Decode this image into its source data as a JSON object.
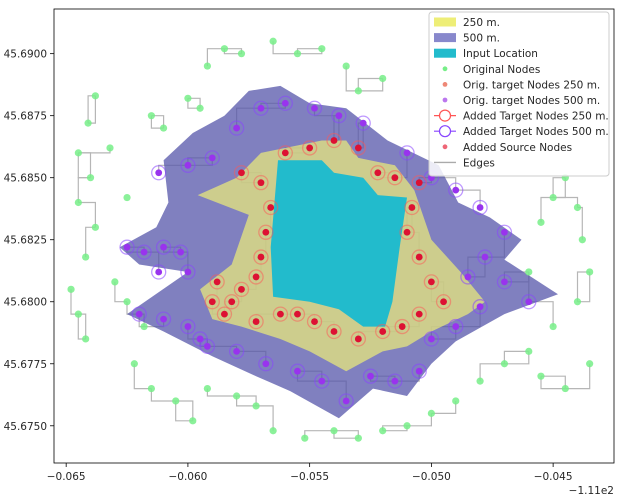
{
  "chart_data": {
    "type": "scatter",
    "title": "",
    "xlabel": "",
    "ylabel": "",
    "x_offset_label": "−1.11e2",
    "xlim": [
      -0.0655,
      -0.0425
    ],
    "ylim": [
      45.6735,
      45.6918
    ],
    "grid": false,
    "legend_position": "top-right",
    "xticks": [
      -0.065,
      -0.06,
      -0.055,
      -0.05,
      -0.045
    ],
    "xtick_labels": [
      "−0.065",
      "−0.060",
      "−0.055",
      "−0.050",
      "−0.045"
    ],
    "yticks": [
      45.675,
      45.6775,
      45.68,
      45.6825,
      45.685,
      45.6875,
      45.69
    ],
    "ytick_labels": [
      "45.6750",
      "45.6775",
      "45.6800",
      "45.6825",
      "45.6850",
      "45.6875",
      "45.6900"
    ],
    "colors": {
      "area250": "#eeee77",
      "area500": "#5555aa",
      "input": "#22bbcc",
      "original": "#77ee88",
      "target250": "#ee8877",
      "target500": "#9933ee",
      "added250": "#ff5555",
      "added500": "#8844ff",
      "source": "#dd1133",
      "edges": "#aaaaaa"
    },
    "regions": [
      {
        "name": "500 m.",
        "polygon": [
          [
            -0.0628,
            45.6822
          ],
          [
            -0.0613,
            45.683
          ],
          [
            -0.0608,
            45.684
          ],
          [
            -0.061,
            45.6857
          ],
          [
            -0.0598,
            45.6868
          ],
          [
            -0.0585,
            45.6875
          ],
          [
            -0.0575,
            45.6885
          ],
          [
            -0.0562,
            45.6887
          ],
          [
            -0.055,
            45.688
          ],
          [
            -0.0535,
            45.6878
          ],
          [
            -0.0518,
            45.6865
          ],
          [
            -0.0497,
            45.6855
          ],
          [
            -0.0489,
            45.684
          ],
          [
            -0.0476,
            45.6834
          ],
          [
            -0.0463,
            45.6825
          ],
          [
            -0.047,
            45.6817
          ],
          [
            -0.0448,
            45.6803
          ],
          [
            -0.047,
            45.6795
          ],
          [
            -0.049,
            45.6784
          ],
          [
            -0.05,
            45.6775
          ],
          [
            -0.051,
            45.6762
          ],
          [
            -0.0524,
            45.6765
          ],
          [
            -0.0538,
            45.6753
          ],
          [
            -0.0558,
            45.6764
          ],
          [
            -0.0572,
            45.677
          ],
          [
            -0.059,
            45.6778
          ],
          [
            -0.061,
            45.6788
          ],
          [
            -0.0625,
            45.6795
          ],
          [
            -0.06,
            45.6812
          ],
          [
            -0.062,
            45.6815
          ]
        ]
      },
      {
        "name": "250 m.",
        "polygon": [
          [
            -0.0596,
            45.6843
          ],
          [
            -0.058,
            45.685
          ],
          [
            -0.057,
            45.686
          ],
          [
            -0.0545,
            45.6865
          ],
          [
            -0.0535,
            45.6865
          ],
          [
            -0.053,
            45.6858
          ],
          [
            -0.0515,
            45.6855
          ],
          [
            -0.0507,
            45.6845
          ],
          [
            -0.05,
            45.6825
          ],
          [
            -0.0488,
            45.6812
          ],
          [
            -0.0478,
            45.68
          ],
          [
            -0.0485,
            45.6795
          ],
          [
            -0.05,
            45.6788
          ],
          [
            -0.051,
            45.6782
          ],
          [
            -0.052,
            45.678
          ],
          [
            -0.0535,
            45.6772
          ],
          [
            -0.055,
            45.678
          ],
          [
            -0.0562,
            45.6785
          ],
          [
            -0.0578,
            45.679
          ],
          [
            -0.059,
            45.6793
          ],
          [
            -0.0595,
            45.6805
          ],
          [
            -0.0582,
            45.6815
          ],
          [
            -0.0575,
            45.6835
          ]
        ]
      },
      {
        "name": "Input Location",
        "polygon": [
          [
            -0.0563,
            45.6857
          ],
          [
            -0.0545,
            45.6857
          ],
          [
            -0.054,
            45.6852
          ],
          [
            -0.0528,
            45.685
          ],
          [
            -0.0522,
            45.6843
          ],
          [
            -0.051,
            45.6842
          ],
          [
            -0.0513,
            45.6822
          ],
          [
            -0.0516,
            45.68
          ],
          [
            -0.0519,
            45.679
          ],
          [
            -0.0528,
            45.679
          ],
          [
            -0.0538,
            45.6797
          ],
          [
            -0.055,
            45.68
          ],
          [
            -0.0565,
            45.6802
          ],
          [
            -0.0566,
            45.6822
          ]
        ]
      }
    ],
    "legend": [
      {
        "label": "250 m.",
        "kind": "patch",
        "color": "#eeee77"
      },
      {
        "label": "500 m.",
        "kind": "patch",
        "color": "#8888cc"
      },
      {
        "label": "Input Location",
        "kind": "patch",
        "color": "#22bbcc"
      },
      {
        "label": "Original Nodes",
        "kind": "dot",
        "color": "#77ee88"
      },
      {
        "label": "Orig. target Nodes 250 m.",
        "kind": "dot",
        "color": "#ee8877"
      },
      {
        "label": "Orig. target Nodes 500 m.",
        "kind": "dot",
        "color": "#bb77ee"
      },
      {
        "label": "Added Target Nodes 250 m.",
        "kind": "ring",
        "color": "#ff5555"
      },
      {
        "label": "Added Target Nodes 500 m.",
        "kind": "ring",
        "color": "#8844ff"
      },
      {
        "label": "Added Source Nodes",
        "kind": "dot",
        "color": "#ee6677"
      },
      {
        "label": "Edges",
        "kind": "line",
        "color": "#aaaaaa"
      }
    ],
    "series": [
      {
        "name": "Original Nodes",
        "points": [
          [
            -0.0638,
            45.6883
          ],
          [
            -0.0641,
            45.6872
          ],
          [
            -0.0645,
            45.686
          ],
          [
            -0.064,
            45.685
          ],
          [
            -0.0645,
            45.684
          ],
          [
            -0.0638,
            45.683
          ],
          [
            -0.0642,
            45.6818
          ],
          [
            -0.0648,
            45.6805
          ],
          [
            -0.0645,
            45.6795
          ],
          [
            -0.0642,
            45.6785
          ],
          [
            -0.063,
            45.6808
          ],
          [
            -0.0625,
            45.68
          ],
          [
            -0.0618,
            45.679
          ],
          [
            -0.0622,
            45.6775
          ],
          [
            -0.0615,
            45.6765
          ],
          [
            -0.0605,
            45.676
          ],
          [
            -0.0598,
            45.6752
          ],
          [
            -0.0592,
            45.6765
          ],
          [
            -0.058,
            45.6762
          ],
          [
            -0.0572,
            45.6758
          ],
          [
            -0.0565,
            45.6748
          ],
          [
            -0.0552,
            45.6745
          ],
          [
            -0.054,
            45.6748
          ],
          [
            -0.053,
            45.6745
          ],
          [
            -0.052,
            45.6748
          ],
          [
            -0.051,
            45.675
          ],
          [
            -0.05,
            45.6755
          ],
          [
            -0.049,
            45.676
          ],
          [
            -0.048,
            45.6768
          ],
          [
            -0.047,
            45.6775
          ],
          [
            -0.046,
            45.678
          ],
          [
            -0.045,
            45.679
          ],
          [
            -0.044,
            45.68
          ],
          [
            -0.0435,
            45.6812
          ],
          [
            -0.0438,
            45.6825
          ],
          [
            -0.044,
            45.6838
          ],
          [
            -0.0445,
            45.685
          ],
          [
            -0.045,
            45.6842
          ],
          [
            -0.0455,
            45.6832
          ],
          [
            -0.046,
            45.6812
          ],
          [
            -0.0592,
            45.6895
          ],
          [
            -0.0585,
            45.6902
          ],
          [
            -0.0578,
            45.69
          ],
          [
            -0.0565,
            45.6905
          ],
          [
            -0.0555,
            45.69
          ],
          [
            -0.0545,
            45.6902
          ],
          [
            -0.0535,
            45.6895
          ],
          [
            -0.053,
            45.6885
          ],
          [
            -0.052,
            45.689
          ],
          [
            -0.061,
            45.687
          ],
          [
            -0.0615,
            45.6875
          ],
          [
            -0.06,
            45.6882
          ],
          [
            -0.0595,
            45.6878
          ],
          [
            -0.0632,
            45.6862
          ],
          [
            -0.0625,
            45.6842
          ],
          [
            -0.0435,
            45.6775
          ],
          [
            -0.0445,
            45.6765
          ],
          [
            -0.0455,
            45.677
          ]
        ]
      },
      {
        "name": "Orig. target Nodes 500 m.",
        "points": [
          [
            -0.0625,
            45.6822
          ],
          [
            -0.0618,
            45.682
          ],
          [
            -0.061,
            45.6822
          ],
          [
            -0.0603,
            45.682
          ],
          [
            -0.0612,
            45.6812
          ],
          [
            -0.06,
            45.6812
          ],
          [
            -0.062,
            45.6795
          ],
          [
            -0.061,
            45.6793
          ],
          [
            -0.06,
            45.679
          ],
          [
            -0.0595,
            45.6785
          ],
          [
            -0.0612,
            45.6852
          ],
          [
            -0.06,
            45.6855
          ],
          [
            -0.059,
            45.6858
          ],
          [
            -0.058,
            45.687
          ],
          [
            -0.057,
            45.6878
          ],
          [
            -0.056,
            45.688
          ],
          [
            -0.0548,
            45.6878
          ],
          [
            -0.0538,
            45.6875
          ],
          [
            -0.0528,
            45.6872
          ],
          [
            -0.051,
            45.686
          ],
          [
            -0.05,
            45.685
          ],
          [
            -0.049,
            45.6845
          ],
          [
            -0.048,
            45.6838
          ],
          [
            -0.047,
            45.6828
          ],
          [
            -0.0478,
            45.6818
          ],
          [
            -0.0485,
            45.681
          ],
          [
            -0.047,
            45.6808
          ],
          [
            -0.046,
            45.68
          ],
          [
            -0.048,
            45.6798
          ],
          [
            -0.049,
            45.679
          ],
          [
            -0.05,
            45.6785
          ],
          [
            -0.0505,
            45.6772
          ],
          [
            -0.0515,
            45.6768
          ],
          [
            -0.0525,
            45.677
          ],
          [
            -0.0535,
            45.676
          ],
          [
            -0.0545,
            45.6768
          ],
          [
            -0.0555,
            45.6772
          ],
          [
            -0.0568,
            45.6775
          ],
          [
            -0.058,
            45.678
          ],
          [
            -0.0592,
            45.6782
          ]
        ]
      },
      {
        "name": "Added Source Nodes",
        "points": [
          [
            -0.0582,
            45.68
          ],
          [
            -0.0578,
            45.6805
          ],
          [
            -0.0572,
            45.681
          ],
          [
            -0.057,
            45.6818
          ],
          [
            -0.0568,
            45.6828
          ],
          [
            -0.0566,
            45.6838
          ],
          [
            -0.057,
            45.6848
          ],
          [
            -0.0578,
            45.6852
          ],
          [
            -0.056,
            45.686
          ],
          [
            -0.055,
            45.6862
          ],
          [
            -0.054,
            45.6865
          ],
          [
            -0.053,
            45.6862
          ],
          [
            -0.0522,
            45.6852
          ],
          [
            -0.0515,
            45.685
          ],
          [
            -0.0505,
            45.6848
          ],
          [
            -0.0508,
            45.6838
          ],
          [
            -0.051,
            45.6828
          ],
          [
            -0.0505,
            45.6818
          ],
          [
            -0.05,
            45.6808
          ],
          [
            -0.0495,
            45.68
          ],
          [
            -0.0505,
            45.6795
          ],
          [
            -0.0512,
            45.679
          ],
          [
            -0.052,
            45.6788
          ],
          [
            -0.053,
            45.6785
          ],
          [
            -0.054,
            45.6788
          ],
          [
            -0.0548,
            45.6792
          ],
          [
            -0.0555,
            45.6795
          ],
          [
            -0.0562,
            45.6795
          ],
          [
            -0.0572,
            45.6792
          ],
          [
            -0.0585,
            45.6795
          ],
          [
            -0.059,
            45.68
          ],
          [
            -0.0588,
            45.6808
          ]
        ]
      }
    ]
  }
}
